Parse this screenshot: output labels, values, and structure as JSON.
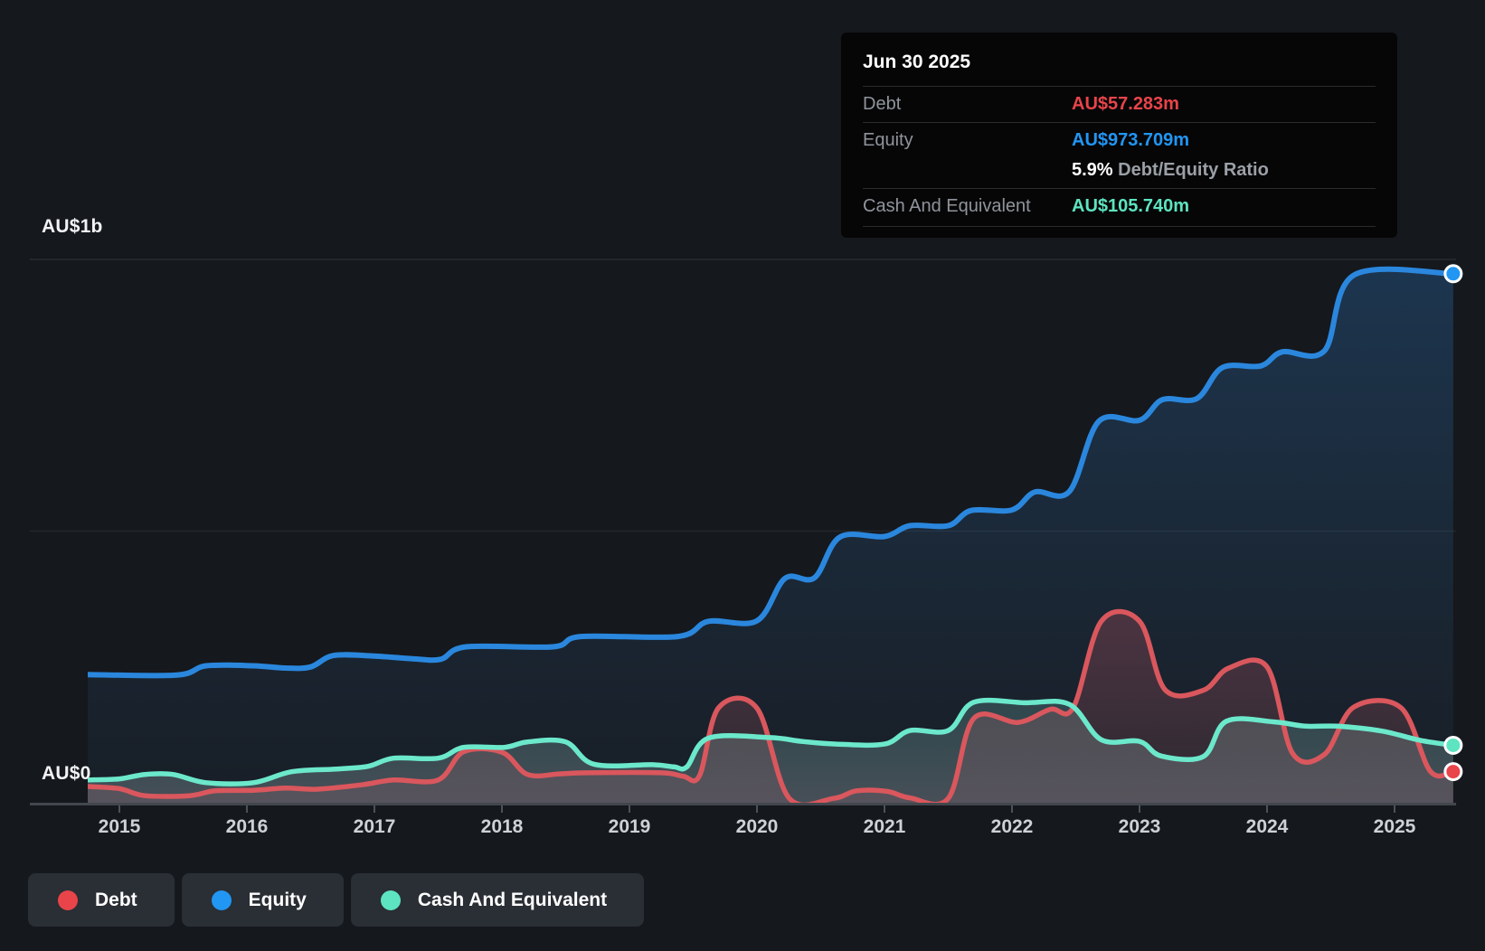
{
  "axes": {
    "y_top_label": "AU$1b",
    "y_zero_label": "AU$0",
    "x_labels": [
      "2015",
      "2016",
      "2017",
      "2018",
      "2019",
      "2020",
      "2021",
      "2022",
      "2023",
      "2024",
      "2025"
    ]
  },
  "colors": {
    "debt": "#e8444a",
    "debt_line": "#d9575d",
    "equity": "#2196f3",
    "equity_line": "#2a87dd",
    "cash": "#5de4c0",
    "cash_line": "#6ce8cb",
    "grid": "#282c33",
    "grid_mid": "#23272d",
    "axis": "#42474e",
    "tick": "#4d525a"
  },
  "tooltip": {
    "date": "Jun 30 2025",
    "debt_label": "Debt",
    "debt_value": "AU$57.283m",
    "equity_label": "Equity",
    "equity_value": "AU$973.709m",
    "ratio_value": "5.9%",
    "ratio_label": "Debt/Equity Ratio",
    "cash_label": "Cash And Equivalent",
    "cash_value": "AU$105.740m"
  },
  "legend": [
    {
      "key": "debt",
      "label": "Debt"
    },
    {
      "key": "equity",
      "label": "Equity"
    },
    {
      "key": "cash",
      "label": "Cash And Equivalent"
    }
  ],
  "chart_data": {
    "type": "line",
    "title": "Debt to Equity history",
    "units": "AU$ millions",
    "x_range": [
      2014.75,
      2025.46
    ],
    "ylim": [
      0,
      1000
    ],
    "gridlines_m": [
      0,
      500,
      1000
    ],
    "legend_position": "bottom-left",
    "series": [
      {
        "id": "equity",
        "name": "Equity",
        "end_label": "AU$973.709m",
        "points": [
          [
            2014.75,
            236
          ],
          [
            2015.45,
            235
          ],
          [
            2015.68,
            252
          ],
          [
            2016.05,
            252
          ],
          [
            2016.3,
            248
          ],
          [
            2016.5,
            250
          ],
          [
            2016.68,
            271
          ],
          [
            2017.0,
            270
          ],
          [
            2017.3,
            265
          ],
          [
            2017.52,
            264
          ],
          [
            2017.72,
            287
          ],
          [
            2018.4,
            287
          ],
          [
            2018.62,
            306
          ],
          [
            2019.38,
            306
          ],
          [
            2019.62,
            334
          ],
          [
            2020.0,
            335
          ],
          [
            2020.22,
            413
          ],
          [
            2020.45,
            414
          ],
          [
            2020.65,
            489
          ],
          [
            2021.0,
            490
          ],
          [
            2021.2,
            510
          ],
          [
            2021.5,
            510
          ],
          [
            2021.68,
            538
          ],
          [
            2022.0,
            539
          ],
          [
            2022.18,
            572
          ],
          [
            2022.45,
            573
          ],
          [
            2022.68,
            702
          ],
          [
            2023.0,
            704
          ],
          [
            2023.18,
            742
          ],
          [
            2023.45,
            744
          ],
          [
            2023.65,
            801
          ],
          [
            2023.95,
            804
          ],
          [
            2024.12,
            830
          ],
          [
            2024.45,
            832
          ],
          [
            2024.68,
            971
          ],
          [
            2025.46,
            973.709
          ]
        ]
      },
      {
        "id": "cash",
        "name": "Cash And Equivalent",
        "end_label": "AU$105.740m",
        "points": [
          [
            2014.75,
            42
          ],
          [
            2015.0,
            44
          ],
          [
            2015.2,
            52
          ],
          [
            2015.42,
            52
          ],
          [
            2015.68,
            37
          ],
          [
            2016.05,
            37
          ],
          [
            2016.35,
            57
          ],
          [
            2016.7,
            62
          ],
          [
            2016.95,
            67
          ],
          [
            2017.15,
            82
          ],
          [
            2017.5,
            82
          ],
          [
            2017.7,
            102
          ],
          [
            2018.02,
            102
          ],
          [
            2018.2,
            112
          ],
          [
            2018.5,
            112
          ],
          [
            2018.72,
            71
          ],
          [
            2019.18,
            70
          ],
          [
            2019.35,
            66
          ],
          [
            2019.45,
            66
          ],
          [
            2019.62,
            119
          ],
          [
            2020.1,
            120
          ],
          [
            2020.35,
            113
          ],
          [
            2020.62,
            108
          ],
          [
            2021.0,
            108
          ],
          [
            2021.2,
            133
          ],
          [
            2021.5,
            133
          ],
          [
            2021.7,
            185
          ],
          [
            2022.1,
            184
          ],
          [
            2022.45,
            181
          ],
          [
            2022.7,
            116
          ],
          [
            2023.0,
            113
          ],
          [
            2023.17,
            86
          ],
          [
            2023.5,
            85
          ],
          [
            2023.68,
            150
          ],
          [
            2024.05,
            149
          ],
          [
            2024.3,
            141
          ],
          [
            2024.55,
            141
          ],
          [
            2024.9,
            132
          ],
          [
            2025.2,
            115
          ],
          [
            2025.46,
            105.74
          ]
        ]
      },
      {
        "id": "debt",
        "name": "Debt",
        "end_label": "AU$57.283m",
        "points": [
          [
            2014.75,
            30
          ],
          [
            2015.0,
            26
          ],
          [
            2015.2,
            13
          ],
          [
            2015.55,
            13
          ],
          [
            2015.75,
            22
          ],
          [
            2016.05,
            23
          ],
          [
            2016.3,
            27
          ],
          [
            2016.55,
            25
          ],
          [
            2016.9,
            33
          ],
          [
            2017.15,
            42
          ],
          [
            2017.5,
            42
          ],
          [
            2017.7,
            94
          ],
          [
            2018.0,
            93
          ],
          [
            2018.2,
            52
          ],
          [
            2018.45,
            53
          ],
          [
            2018.65,
            55
          ],
          [
            2019.25,
            55
          ],
          [
            2019.42,
            49
          ],
          [
            2019.55,
            50
          ],
          [
            2019.7,
            175
          ],
          [
            2020.0,
            174
          ],
          [
            2020.25,
            9
          ],
          [
            2020.6,
            8
          ],
          [
            2020.78,
            22
          ],
          [
            2021.02,
            21
          ],
          [
            2021.2,
            9
          ],
          [
            2021.5,
            8
          ],
          [
            2021.7,
            155
          ],
          [
            2022.05,
            148
          ],
          [
            2022.3,
            172
          ],
          [
            2022.48,
            175
          ],
          [
            2022.7,
            334
          ],
          [
            2023.0,
            334
          ],
          [
            2023.2,
            208
          ],
          [
            2023.5,
            207
          ],
          [
            2023.7,
            248
          ],
          [
            2024.0,
            250
          ],
          [
            2024.2,
            91
          ],
          [
            2024.45,
            89
          ],
          [
            2024.68,
            176
          ],
          [
            2025.05,
            175
          ],
          [
            2025.28,
            58
          ],
          [
            2025.46,
            57.283
          ]
        ]
      }
    ]
  }
}
